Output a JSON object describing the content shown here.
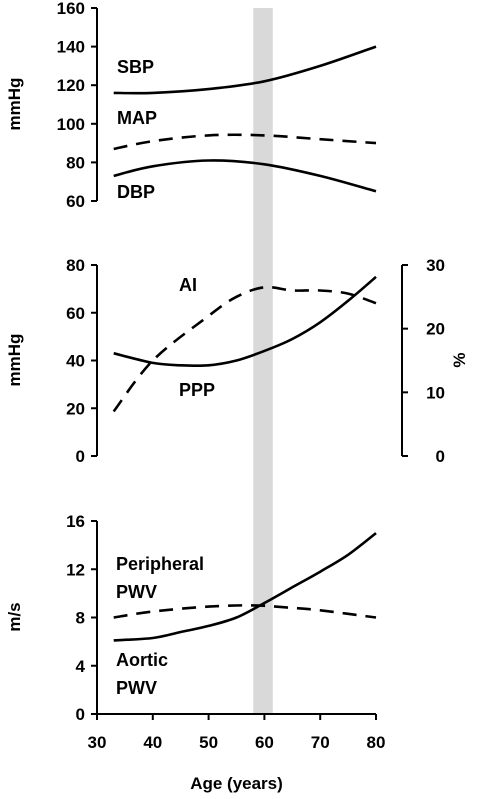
{
  "chart_data": [
    {
      "type": "line",
      "ylabel": "mmHg",
      "ylim": [
        60,
        160
      ],
      "yticks": [
        "60",
        "80",
        "100",
        "120",
        "140",
        "160"
      ],
      "series": [
        {
          "name": "SBP",
          "style": "solid",
          "x": [
            33,
            40,
            50,
            60,
            70,
            80
          ],
          "y": [
            116,
            116,
            118,
            122,
            130,
            140
          ]
        },
        {
          "name": "MAP",
          "style": "dashed",
          "x": [
            33,
            40,
            50,
            60,
            70,
            80
          ],
          "y": [
            87,
            91,
            94,
            94,
            92,
            90
          ]
        },
        {
          "name": "DBP",
          "style": "solid",
          "x": [
            33,
            40,
            50,
            60,
            70,
            80
          ],
          "y": [
            73,
            78,
            81,
            79,
            73,
            65
          ]
        }
      ]
    },
    {
      "type": "line",
      "ylabel": "mmHg",
      "ylim": [
        0,
        80
      ],
      "yticks": [
        "0",
        "20",
        "40",
        "60",
        "80"
      ],
      "y2label": "%",
      "y2lim": [
        0,
        30
      ],
      "y2ticks": [
        "0",
        "10",
        "20",
        "30"
      ],
      "series": [
        {
          "name": "PPP",
          "style": "solid",
          "axis": "left",
          "x": [
            33,
            40,
            45,
            50,
            55,
            60,
            65,
            70,
            75,
            80
          ],
          "y": [
            43,
            39,
            38,
            38,
            40,
            44,
            49,
            56,
            65,
            75
          ]
        },
        {
          "name": "AI",
          "style": "dashed",
          "axis": "right",
          "x": [
            33,
            40,
            50,
            55,
            60,
            65,
            70,
            75,
            80
          ],
          "y": [
            7,
            15,
            22,
            25,
            26.5,
            26,
            26,
            25.5,
            24
          ]
        }
      ]
    },
    {
      "type": "line",
      "ylabel": "m/s",
      "xlabel": "Age (years)",
      "ylim": [
        0,
        16
      ],
      "yticks": [
        "0",
        "4",
        "8",
        "12",
        "16"
      ],
      "xlim": [
        30,
        80
      ],
      "xticks": [
        "30",
        "40",
        "50",
        "60",
        "70",
        "80"
      ],
      "series": [
        {
          "name": "Peripheral PWV",
          "name_lines": [
            "Peripheral",
            "PWV"
          ],
          "style": "dashed",
          "x": [
            33,
            40,
            50,
            58,
            65,
            70,
            80
          ],
          "y": [
            8,
            8.5,
            8.9,
            9,
            8.8,
            8.6,
            8
          ]
        },
        {
          "name": "Aortic PWV",
          "name_lines": [
            "Aortic",
            "PWV"
          ],
          "style": "solid",
          "x": [
            33,
            40,
            45,
            50,
            55,
            60,
            65,
            70,
            75,
            80
          ],
          "y": [
            6.1,
            6.3,
            6.8,
            7.3,
            8,
            9.2,
            10.5,
            11.8,
            13.2,
            15
          ]
        }
      ]
    }
  ],
  "highlight": {
    "x_from": 58,
    "x_to": 61.5,
    "color": "#d9d9d9"
  },
  "colors": {
    "line": "#000000",
    "background": "#ffffff"
  }
}
